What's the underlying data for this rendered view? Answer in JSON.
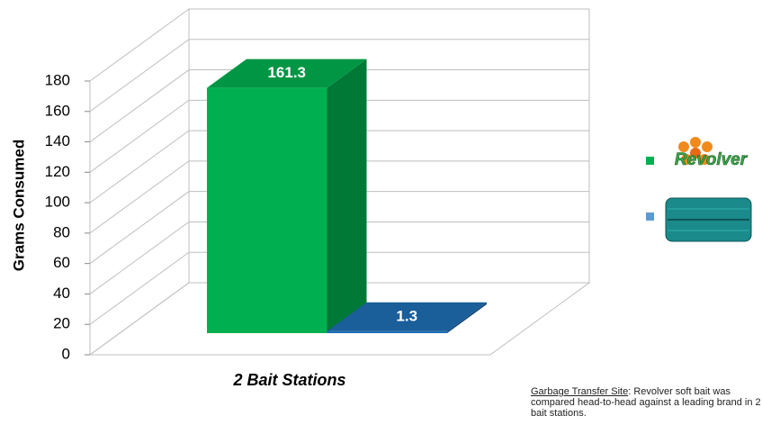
{
  "chart_data": {
    "type": "bar3d",
    "y_label": "Grams Consumed",
    "categories": [
      "2 Bait Stations"
    ],
    "series": [
      {
        "name": "Revolver",
        "color": "#00b050",
        "values": [
          161.3
        ]
      },
      {
        "color": "#1f6fb5",
        "values": [
          1.3
        ]
      }
    ],
    "ylim": [
      0,
      180
    ],
    "yticks": [
      0,
      20,
      40,
      60,
      80,
      100,
      120,
      140,
      160,
      180
    ],
    "grid": true,
    "note": {
      "link": "Garbage Transfer Site",
      "text": ": Revolver soft bait was compared head-to-head against a leading brand in 2 bait stations."
    }
  }
}
